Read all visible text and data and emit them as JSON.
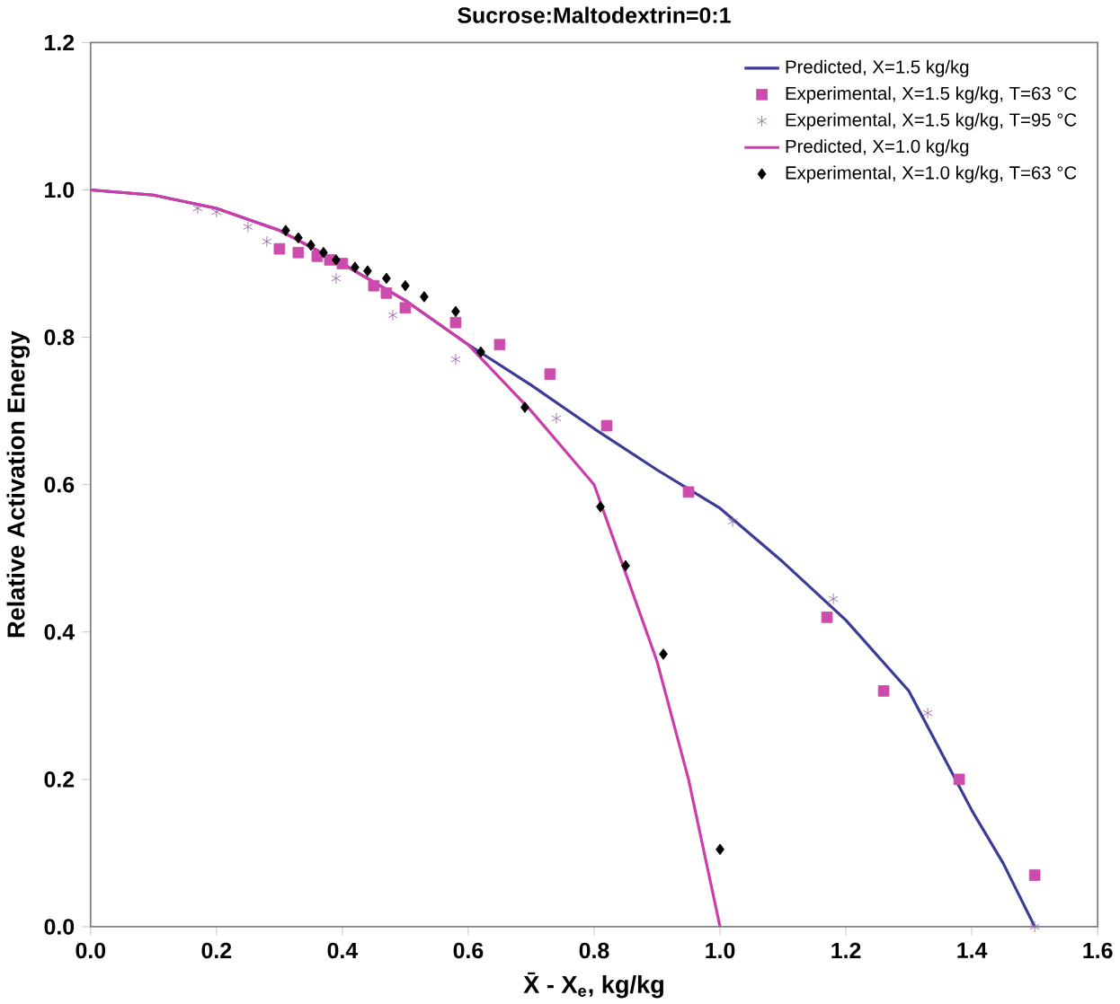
{
  "chart_data": {
    "type": "line",
    "title": "Sucrose:Maltodextrin=0:1",
    "xlabel": "X̄ - X$_{e}$, kg/kg",
    "ylabel": "Relative Activation Energy",
    "xlim": [
      0,
      1.6
    ],
    "ylim": [
      0,
      1.2
    ],
    "xticks": [
      {
        "value": 0,
        "label": "0.0"
      },
      0.2,
      0.4,
      0.6,
      0.8,
      {
        "value": 1,
        "label": "1.0"
      },
      1.2,
      1.4,
      1.6
    ],
    "yticks": [
      {
        "value": 0,
        "label": "0.0"
      },
      0.2,
      0.4,
      0.6,
      0.8,
      {
        "value": 1,
        "label": "1.0"
      },
      1.2
    ],
    "grid": false,
    "legend": "top right",
    "series": [
      {
        "name": "Predicted, X=1.5 kg/kg",
        "type": "line",
        "marker": "none",
        "color": "#3c3c96",
        "x": [
          0,
          0.1,
          0.2,
          0.3,
          0.4,
          0.5,
          0.6,
          0.7,
          0.8,
          0.9,
          1.0,
          1.1,
          1.2,
          1.3,
          1.4,
          1.45,
          1.5
        ],
        "values": [
          1.0,
          0.993,
          0.975,
          0.945,
          0.9,
          0.85,
          0.79,
          0.735,
          0.676,
          0.62,
          0.568,
          0.495,
          0.416,
          0.32,
          0.158,
          0.086,
          0.0
        ]
      },
      {
        "name": "Experimental, X=1.5 kg/kg, T=63 °C",
        "type": "scatter",
        "marker": "square",
        "color": "#cc4cae",
        "x": [
          0.3,
          0.33,
          0.36,
          0.38,
          0.4,
          0.45,
          0.47,
          0.5,
          0.58,
          0.65,
          0.73,
          0.82,
          0.95,
          1.17,
          1.26,
          1.38,
          1.5
        ],
        "values": [
          0.92,
          0.915,
          0.91,
          0.905,
          0.9,
          0.87,
          0.86,
          0.84,
          0.82,
          0.79,
          0.75,
          0.68,
          0.59,
          0.42,
          0.32,
          0.2,
          0.07
        ]
      },
      {
        "name": "Experimental, X=1.5 kg/kg, T=95 °C",
        "type": "scatter",
        "marker": "cross",
        "color": "#9a6aa8",
        "x": [
          0.17,
          0.2,
          0.25,
          0.28,
          0.39,
          0.48,
          0.58,
          0.74,
          1.02,
          1.18,
          1.33,
          1.5
        ],
        "values": [
          0.975,
          0.97,
          0.95,
          0.93,
          0.88,
          0.83,
          0.77,
          0.69,
          0.55,
          0.445,
          0.29,
          0.0
        ]
      },
      {
        "name": "Predicted, X=1.0 kg/kg",
        "type": "line",
        "marker": "none",
        "color": "#cc3caa",
        "x": [
          0,
          0.1,
          0.2,
          0.3,
          0.4,
          0.5,
          0.6,
          0.7,
          0.8,
          0.85,
          0.9,
          0.95,
          1.0
        ],
        "values": [
          1.0,
          0.993,
          0.975,
          0.945,
          0.9,
          0.85,
          0.79,
          0.7,
          0.6,
          0.48,
          0.36,
          0.2,
          0.0
        ]
      },
      {
        "name": "Experimental, X=1.0 kg/kg, T=63 °C",
        "type": "scatter",
        "marker": "diamond",
        "color": "#000000",
        "x": [
          0.31,
          0.33,
          0.35,
          0.37,
          0.39,
          0.42,
          0.44,
          0.47,
          0.5,
          0.53,
          0.58,
          0.62,
          0.69,
          0.81,
          0.85,
          0.91,
          1.0
        ],
        "values": [
          0.945,
          0.935,
          0.925,
          0.915,
          0.905,
          0.895,
          0.89,
          0.88,
          0.87,
          0.855,
          0.835,
          0.78,
          0.705,
          0.57,
          0.49,
          0.37,
          0.105
        ]
      }
    ]
  }
}
